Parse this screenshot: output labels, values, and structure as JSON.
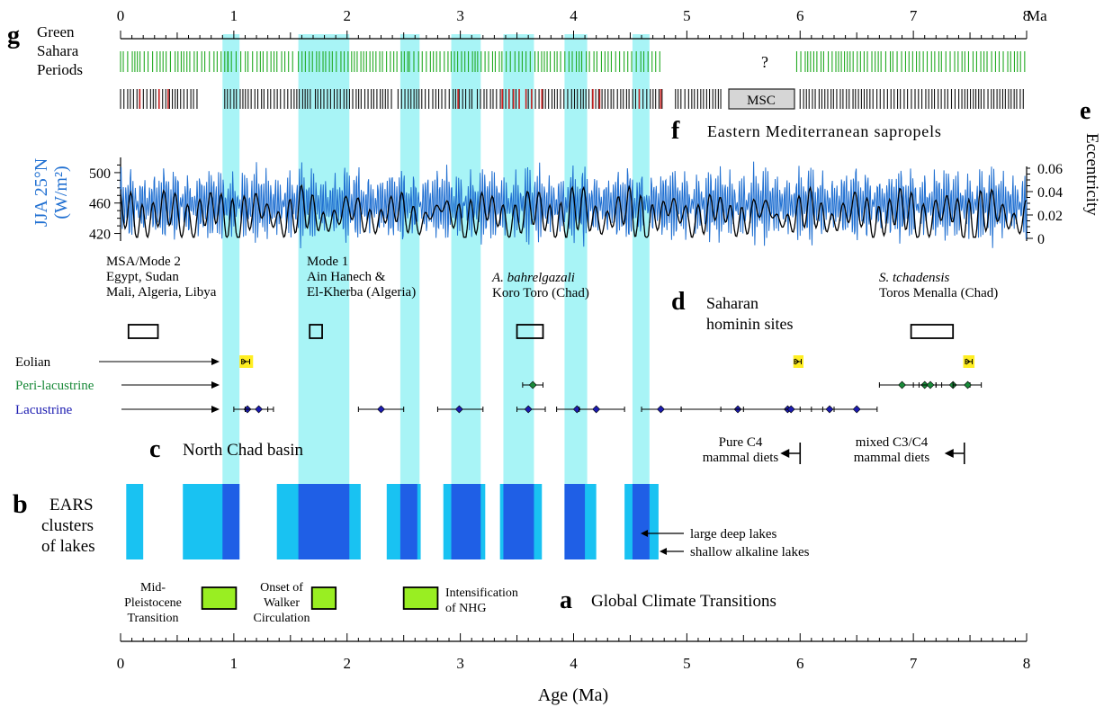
{
  "chart_data": {
    "type": "composite-timeline",
    "x_unit": "Ma",
    "xlim": [
      0,
      8
    ],
    "xlabel": "Age (Ma)",
    "x_ticks": [
      "0",
      "1",
      "2",
      "3",
      "4",
      "5",
      "6",
      "7",
      "8"
    ],
    "top_axis_unit": "Ma",
    "colors": {
      "cyan_band": "#a8f4f6",
      "green_ticks": "#22aa22",
      "red_ticks": "#cc2222",
      "insolation": "#1f6fd1",
      "ears_shallow": "#19c2f2",
      "ears_deep": "#1f5fe6",
      "climate_box": "#99ee22",
      "eolian_box": "#ffee22",
      "lacustrine": "#1b1bb0",
      "peri_lacustrine": "#1a8a3a"
    },
    "highlight_bands_ma": [
      [
        0.9,
        1.05
      ],
      [
        1.57,
        2.02
      ],
      [
        2.47,
        2.64
      ],
      [
        2.92,
        3.18
      ],
      [
        3.38,
        3.65
      ],
      [
        3.92,
        4.12
      ],
      [
        4.52,
        4.67
      ]
    ],
    "panel_g": {
      "letter": "g",
      "label_lines": [
        "Green",
        "Sahara",
        "Periods"
      ],
      "unknown_mark": "?",
      "green_period_ranges_ma": [
        [
          0.0,
          0.95
        ],
        [
          0.95,
          1.55
        ],
        [
          1.57,
          2.55
        ],
        [
          2.55,
          3.02
        ],
        [
          3.04,
          3.55
        ],
        [
          3.58,
          4.12
        ],
        [
          4.14,
          4.78
        ],
        [
          5.97,
          8.0
        ]
      ],
      "sapropel_row_ranges_ma": [
        [
          0.0,
          0.7
        ],
        [
          0.92,
          1.7
        ],
        [
          1.72,
          2.4
        ],
        [
          2.45,
          3.12
        ],
        [
          3.15,
          3.55
        ],
        [
          3.6,
          4.8
        ],
        [
          4.9,
          5.3
        ],
        [
          6.0,
          8.0
        ]
      ],
      "red_sapropels_ma": [
        0.17,
        0.34,
        0.42,
        2.98,
        3.37,
        3.43,
        3.47,
        3.52,
        3.58,
        3.63,
        3.72,
        4.17,
        4.23,
        4.58,
        4.77
      ],
      "msc_box": {
        "label": "MSC",
        "range_ma": [
          5.33,
          5.97
        ]
      }
    },
    "panel_f": {
      "letter": "f",
      "label": "Eastern Mediterranean sapropels"
    },
    "panel_e": {
      "letter": "e",
      "left_axis_label": [
        "JJA 25°N",
        "(W/m²)"
      ],
      "left_ticks": [
        "500",
        "460",
        "420"
      ],
      "left_ylim": [
        410,
        520
      ],
      "right_axis_label": "Eccentricity",
      "right_ticks": [
        "0.06",
        "0.04",
        "0.02",
        "0"
      ],
      "right_ylim": [
        0,
        0.06
      ],
      "series": [
        {
          "name": "JJA 25°N insolation",
          "mean": 460,
          "amplitude": 45,
          "period_ma": 0.021
        },
        {
          "name": "Eccentricity",
          "mean": 0.02,
          "amplitude": 0.038,
          "periods_ma": [
            0.1,
            0.405
          ]
        }
      ]
    },
    "panel_d": {
      "letter": "d",
      "title_lines": [
        "Saharan",
        "hominin sites"
      ],
      "site_groups": [
        {
          "lines": [
            "MSA/Mode 2",
            "Egypt, Sudan",
            "Mali, Algeria, Libya"
          ],
          "box_ma": [
            0.07,
            0.33
          ]
        },
        {
          "lines": [
            "Mode 1",
            "Ain Hanech &",
            "El-Kherba  (Algeria)"
          ],
          "box_ma": [
            1.67,
            1.78
          ]
        },
        {
          "lines": [
            "A. bahrelgazali",
            "Koro Toro (Chad)"
          ],
          "box_ma": [
            3.5,
            3.73
          ],
          "italic_first": true
        },
        {
          "lines": [
            "S. tchadensis",
            "Toros Menalla (Chad)"
          ],
          "box_ma": [
            6.98,
            7.35
          ],
          "italic_first": true
        }
      ]
    },
    "panel_c": {
      "letter": "c",
      "label": "North Chad basin",
      "rows": [
        {
          "name": "Eolian",
          "color": "#000000",
          "boxes_ma": [
            [
              1.05,
              1.17
            ],
            [
              5.94,
              6.03
            ],
            [
              7.44,
              7.54
            ]
          ],
          "points": [
            {
              "x": 1.1,
              "lo": 1.07,
              "hi": 1.14
            },
            {
              "x": 5.98,
              "lo": 5.95,
              "hi": 6.01
            },
            {
              "x": 7.49,
              "lo": 7.46,
              "hi": 7.52
            }
          ]
        },
        {
          "name": "Peri-lacustrine",
          "color": "#1a8a3a",
          "points": [
            {
              "x": 3.64,
              "lo": 3.55,
              "hi": 3.73
            },
            {
              "x": 6.9,
              "lo": 6.7,
              "hi": 7.1
            },
            {
              "x": 7.1,
              "lo": 7.0,
              "hi": 7.2
            },
            {
              "x": 7.15,
              "lo": 7.05,
              "hi": 7.25
            },
            {
              "x": 7.35,
              "lo": 7.2,
              "hi": 7.5
            },
            {
              "x": 7.48,
              "lo": 7.35,
              "hi": 7.6
            }
          ]
        },
        {
          "name": "Lacustrine",
          "color": "#1b1bb0",
          "points": [
            {
              "x": 1.12,
              "lo": 1.0,
              "hi": 1.35
            },
            {
              "x": 1.22,
              "lo": 1.1,
              "hi": 1.3
            },
            {
              "x": 2.3,
              "lo": 2.1,
              "hi": 2.5
            },
            {
              "x": 2.99,
              "lo": 2.8,
              "hi": 3.2
            },
            {
              "x": 3.6,
              "lo": 3.5,
              "hi": 3.75
            },
            {
              "x": 4.03,
              "lo": 3.85,
              "hi": 4.2
            },
            {
              "x": 4.2,
              "lo": 4.05,
              "hi": 4.45
            },
            {
              "x": 4.77,
              "lo": 4.6,
              "hi": 4.95
            },
            {
              "x": 5.45,
              "lo": 4.95,
              "hi": 5.9
            },
            {
              "x": 5.89,
              "lo": 5.3,
              "hi": 6.1
            },
            {
              "x": 5.92,
              "lo": 5.5,
              "hi": 6.2
            },
            {
              "x": 6.26,
              "lo": 6.0,
              "hi": 6.5
            },
            {
              "x": 6.5,
              "lo": 6.3,
              "hi": 6.68
            }
          ]
        }
      ],
      "diet_markers": [
        {
          "lines": [
            "Pure C4",
            "mammal diets"
          ],
          "x_ma": 6.0
        },
        {
          "lines": [
            "mixed C3/C4",
            "mammal diets"
          ],
          "x_ma": 7.45
        }
      ]
    },
    "panel_b": {
      "letter": "b",
      "label_lines": [
        "EARS",
        "clusters",
        "of lakes"
      ],
      "shallow_alkaline_ma": [
        [
          0.05,
          0.2
        ],
        [
          0.55,
          1.05
        ],
        [
          1.38,
          2.12
        ],
        [
          2.35,
          2.65
        ],
        [
          2.85,
          3.22
        ],
        [
          3.35,
          3.72
        ],
        [
          3.92,
          4.2
        ],
        [
          4.45,
          4.75
        ]
      ],
      "large_deep_ma": [
        [
          0.9,
          1.05
        ],
        [
          1.57,
          2.02
        ],
        [
          2.47,
          2.62
        ],
        [
          2.92,
          3.18
        ],
        [
          3.38,
          3.65
        ],
        [
          3.92,
          4.1
        ],
        [
          4.52,
          4.67
        ]
      ],
      "legend": [
        "large deep lakes",
        "shallow alkaline lakes"
      ]
    },
    "panel_a": {
      "letter": "a",
      "label": "Global Climate Transitions",
      "events": [
        {
          "lines": [
            "Mid-",
            "Pleistocene",
            "Transition"
          ],
          "box_ma": [
            0.72,
            1.02
          ]
        },
        {
          "lines": [
            "Onset of",
            "Walker",
            "Circulation"
          ],
          "box_ma": [
            1.69,
            1.9
          ]
        },
        {
          "lines": [
            "Intensification",
            "of NHG"
          ],
          "box_ma": [
            2.5,
            2.8
          ]
        }
      ]
    }
  }
}
